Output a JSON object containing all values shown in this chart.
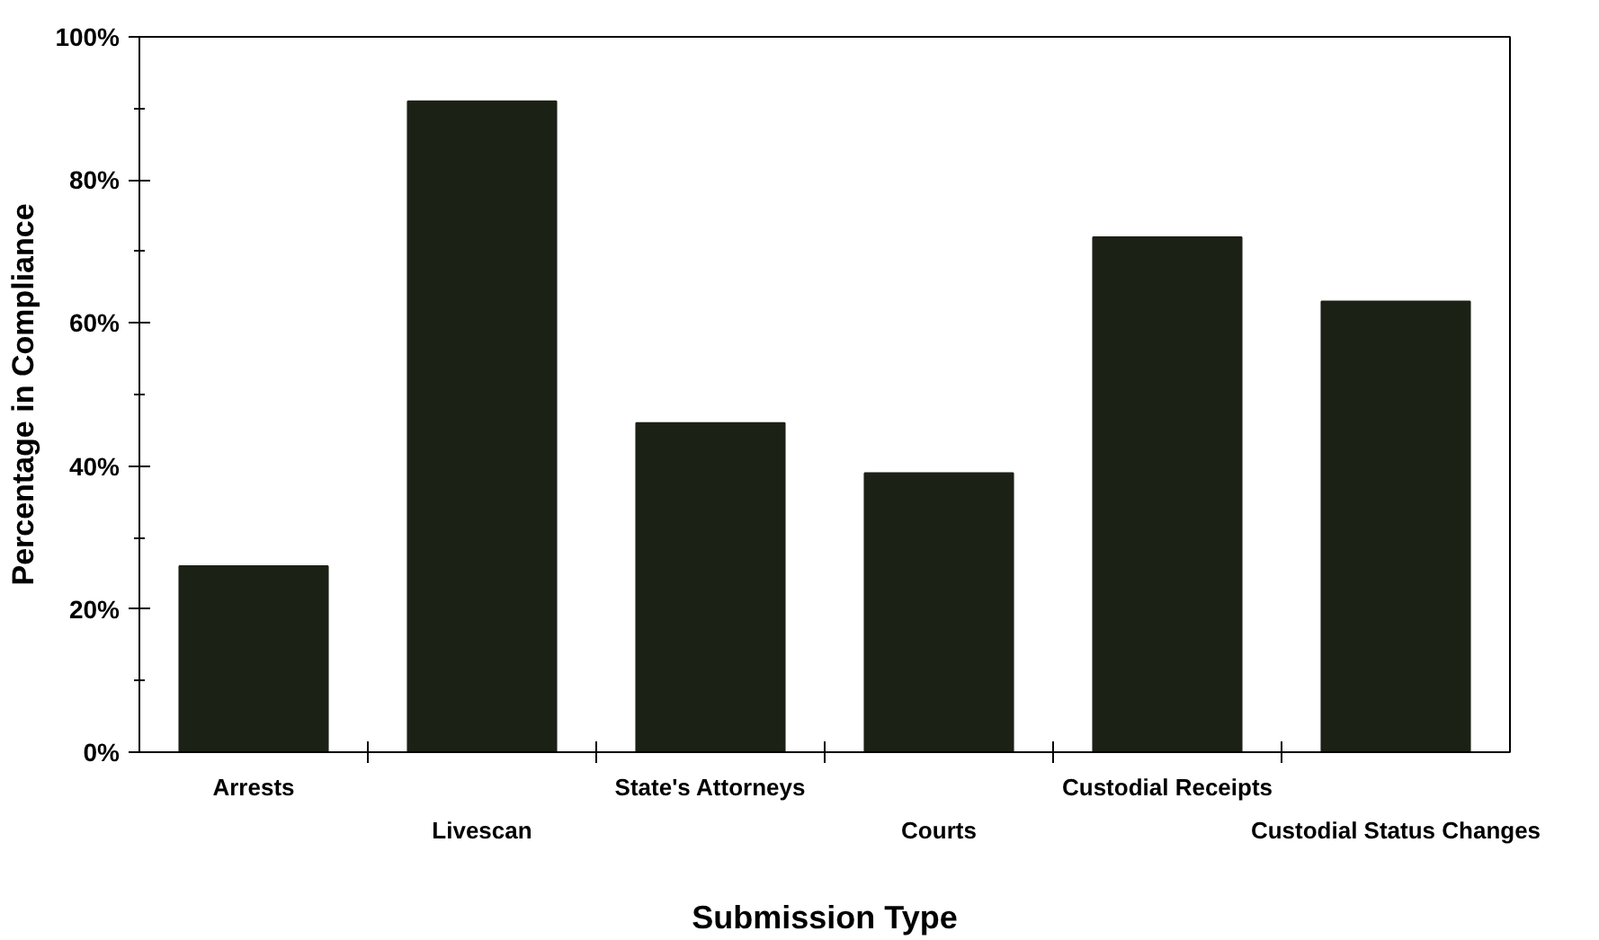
{
  "chart_data": {
    "type": "bar",
    "xlabel": "Submission Type",
    "ylabel": "Percentage in Compliance",
    "categories": [
      "Arrests",
      "Livescan",
      "State's Attorneys",
      "Courts",
      "Custodial Receipts",
      "Custodial Status Changes"
    ],
    "values": [
      26,
      91,
      46,
      39,
      72,
      63
    ],
    "color": "#1c2116",
    "ylim": [
      0,
      100
    ],
    "yticks": [
      {
        "value": 0,
        "label": "0%"
      },
      {
        "value": 20,
        "label": "20%"
      },
      {
        "value": 40,
        "label": "40%"
      },
      {
        "value": 60,
        "label": "60%"
      },
      {
        "value": 80,
        "label": "80%"
      },
      {
        "value": 100,
        "label": "100%"
      }
    ],
    "grid": false
  }
}
